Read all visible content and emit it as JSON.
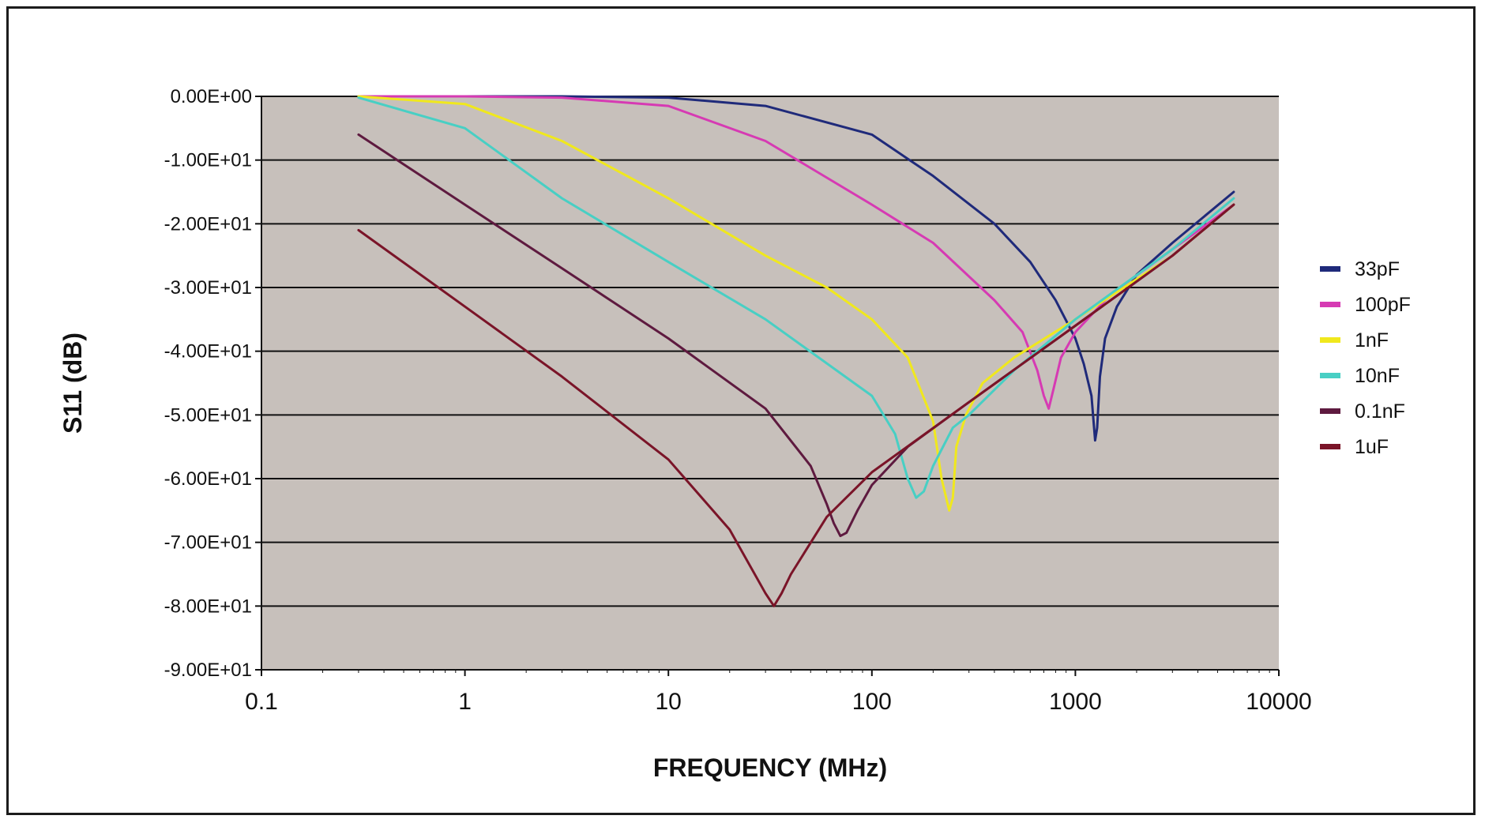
{
  "chart_data": {
    "type": "line",
    "title": "",
    "xlabel": "FREQUENCY (MHz)",
    "ylabel": "S11 (dB)",
    "xscale": "log",
    "xlim": [
      0.1,
      10000
    ],
    "ylim": [
      -90,
      0
    ],
    "x_ticks": [
      0.1,
      1,
      10,
      100,
      1000,
      10000
    ],
    "x_tick_labels": [
      "0.1",
      "1",
      "10",
      "100",
      "1000",
      "10000"
    ],
    "y_ticks": [
      0,
      -10,
      -20,
      -30,
      -40,
      -50,
      -60,
      -70,
      -80,
      -90
    ],
    "y_tick_labels": [
      "0.00E+00",
      "-1.00E+01",
      "-2.00E+01",
      "-3.00E+01",
      "-4.00E+01",
      "-5.00E+01",
      "-6.00E+01",
      "-7.00E+01",
      "-8.00E+01",
      "-9.00E+01"
    ],
    "grid": "horizontal",
    "legend_position": "right",
    "plot_background": "#c7c0bb",
    "series": [
      {
        "name": "33pF",
        "color": "#1f2a7a",
        "x": [
          0.3,
          3,
          10,
          30,
          100,
          200,
          400,
          600,
          800,
          1000,
          1100,
          1200,
          1250,
          1280,
          1320,
          1400,
          1600,
          2000,
          3000,
          6000
        ],
        "y": [
          0,
          0,
          -0.2,
          -1.5,
          -6,
          -12.5,
          -20,
          -26,
          -32,
          -38,
          -42,
          -47,
          -54,
          -52,
          -44,
          -38,
          -33,
          -28,
          -23,
          -15
        ]
      },
      {
        "name": "100pF",
        "color": "#d63ab3",
        "x": [
          0.3,
          1,
          3,
          10,
          30,
          100,
          200,
          400,
          550,
          650,
          700,
          740,
          780,
          850,
          1000,
          1500,
          3000,
          6000
        ],
        "y": [
          0,
          0,
          -0.2,
          -1.5,
          -7,
          -17,
          -23,
          -32,
          -37,
          -43,
          -47,
          -49,
          -46,
          -41,
          -37,
          -31,
          -24,
          -17
        ]
      },
      {
        "name": "1nF",
        "color": "#f0e81d",
        "x": [
          0.3,
          1,
          3,
          10,
          30,
          60,
          100,
          150,
          200,
          220,
          240,
          250,
          260,
          290,
          350,
          500,
          1000,
          3000,
          6000
        ],
        "y": [
          0,
          -1.2,
          -7,
          -16,
          -25,
          -30,
          -35,
          -41,
          -51,
          -60,
          -65,
          -63,
          -55,
          -50,
          -45,
          -41,
          -35,
          -25,
          -17
        ]
      },
      {
        "name": "10nF",
        "color": "#48cfc4",
        "x": [
          0.3,
          1,
          3,
          10,
          30,
          100,
          130,
          150,
          165,
          180,
          200,
          250,
          300,
          500,
          1000,
          3000,
          6000
        ],
        "y": [
          -0.2,
          -5,
          -16,
          -26,
          -35,
          -47,
          -53,
          -60,
          -63,
          -62,
          -58,
          -52,
          -50,
          -43,
          -35,
          -24,
          -16
        ]
      },
      {
        "name": "0.1nF",
        "color": "#5e1a3f",
        "x": [
          0.3,
          1,
          3,
          10,
          30,
          50,
          60,
          65,
          70,
          75,
          85,
          100,
          150,
          300,
          1000,
          3000,
          6000
        ],
        "y": [
          -6,
          -17,
          -27,
          -38,
          -49,
          -58,
          -64,
          -67,
          -69,
          -68.5,
          -65,
          -61,
          -55,
          -48,
          -36,
          -25,
          -17
        ]
      },
      {
        "name": "1uF",
        "color": "#7a1428",
        "x": [
          0.3,
          1,
          3,
          10,
          20,
          30,
          33,
          36,
          40,
          60,
          100,
          300,
          1000,
          3000,
          6000
        ],
        "y": [
          -21,
          -33,
          -44,
          -57,
          -68,
          -78,
          -80,
          -78,
          -75,
          -66,
          -59,
          -48,
          -36,
          -25,
          -17
        ]
      }
    ]
  }
}
